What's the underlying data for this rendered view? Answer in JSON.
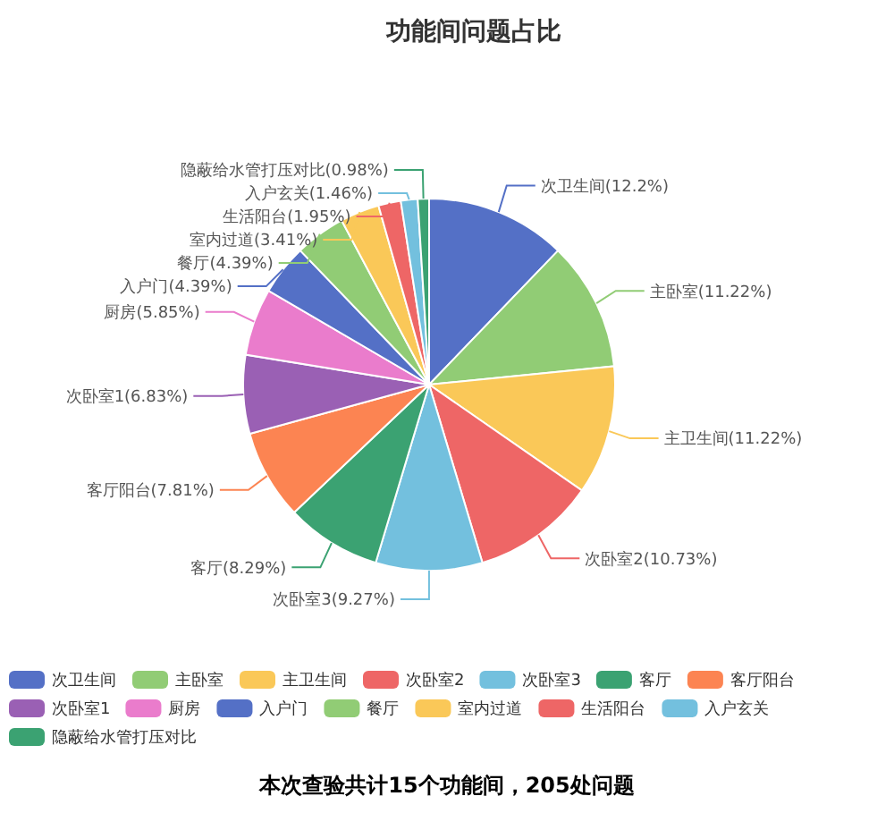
{
  "chart_data": {
    "type": "pie",
    "title": "功能间问题占比",
    "categories": [
      "次卫生间",
      "主卧室",
      "主卫生间",
      "次卧室2",
      "次卧室3",
      "客厅",
      "客厅阳台",
      "次卧室1",
      "厨房",
      "入户门",
      "餐厅",
      "室内过道",
      "生活阳台",
      "入户玄关",
      "隐蔽给水管打压对比"
    ],
    "values": [
      12.2,
      11.22,
      11.22,
      10.73,
      9.27,
      8.29,
      7.81,
      6.83,
      5.85,
      4.39,
      4.39,
      3.41,
      1.95,
      1.46,
      0.98
    ],
    "value_labels": [
      "(12.2%)",
      "(11.22%)",
      "(11.22%)",
      "(10.73%)",
      "(9.27%)",
      "(8.29%)",
      "(7.81%)",
      "(6.83%)",
      "(5.85%)",
      "(4.39%)",
      "(4.39%)",
      "(3.41%)",
      "(1.95%)",
      "(1.46%)",
      "(0.98%)"
    ],
    "colors": [
      "#5470c6",
      "#91cc75",
      "#fac858",
      "#ee6666",
      "#73c0de",
      "#3ba272",
      "#fc8452",
      "#9a60b4",
      "#ea7ccc",
      "#5470c6",
      "#91cc75",
      "#fac858",
      "#ee6666",
      "#73c0de",
      "#3ba272"
    ],
    "legend": "bottom",
    "annotations": [
      "本次查验共计15个功能间，205处问题"
    ]
  }
}
